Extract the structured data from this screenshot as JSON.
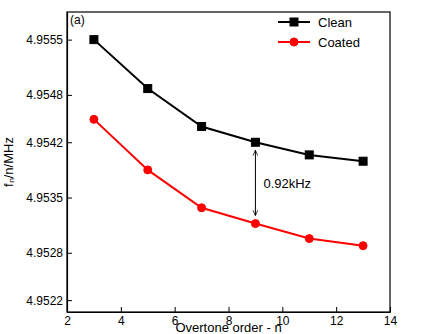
{
  "chart_data": {
    "type": "line",
    "x_label": "Overtone order - n",
    "y_label": "fₙ/n/MHz",
    "x": [
      3,
      5,
      7,
      9,
      11,
      13
    ],
    "series": [
      {
        "name": "Clean",
        "color": "#000000",
        "marker": "square",
        "values": [
          4.9555,
          4.95488,
          4.9544,
          4.9542,
          4.95404,
          4.95396
        ]
      },
      {
        "name": "Coated",
        "color": "#ff0000",
        "marker": "circle",
        "values": [
          4.95449,
          4.95385,
          4.95337,
          4.95317,
          4.95298,
          4.95289
        ]
      }
    ],
    "xlim": [
      2,
      14
    ],
    "xticks": [
      2,
      4,
      6,
      8,
      10,
      12,
      14
    ],
    "ylim": [
      4.95205,
      4.95585
    ],
    "yticks": [
      4.9522,
      4.9528,
      4.9535,
      4.9542,
      4.9548,
      4.9555
    ],
    "legend": "upper right",
    "annotations": [
      "(a)",
      "0.92kHz"
    ]
  }
}
